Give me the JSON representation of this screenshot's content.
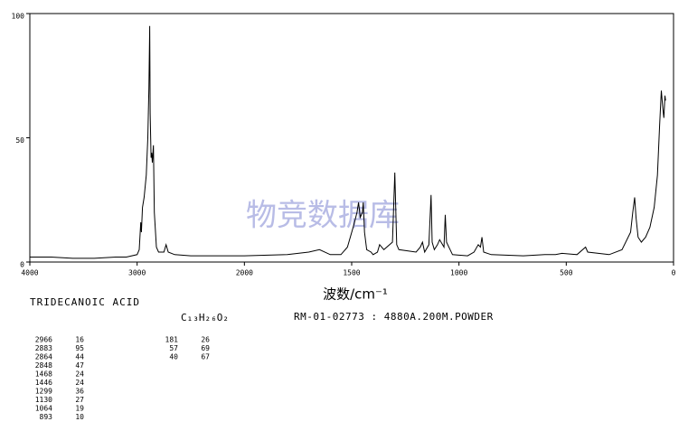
{
  "chart_data": {
    "type": "line",
    "x_label": "波数/cm⁻¹",
    "xlim": [
      4000,
      0
    ],
    "ylim": [
      0,
      100
    ],
    "xticks": [
      4000,
      3000,
      2000,
      1500,
      1000,
      500,
      0
    ],
    "yticks": [
      0,
      50,
      100
    ],
    "xscale": "equal-spacing-between-ticks",
    "series": [
      {
        "color": "#000000",
        "x": [
          4000,
          3800,
          3600,
          3400,
          3200,
          3100,
          3000,
          2980,
          2966,
          2960,
          2950,
          2935,
          2915,
          2900,
          2890,
          2883,
          2878,
          2870,
          2864,
          2858,
          2848,
          2840,
          2820,
          2800,
          2750,
          2730,
          2710,
          2650,
          2500,
          2200,
          2000,
          1800,
          1700,
          1650,
          1600,
          1550,
          1520,
          1490,
          1475,
          1468,
          1460,
          1450,
          1446,
          1440,
          1430,
          1410,
          1400,
          1380,
          1370,
          1350,
          1310,
          1299,
          1290,
          1280,
          1200,
          1180,
          1170,
          1160,
          1140,
          1130,
          1125,
          1115,
          1100,
          1090,
          1070,
          1064,
          1058,
          1030,
          960,
          930,
          910,
          900,
          893,
          885,
          850,
          700,
          600,
          550,
          520,
          450,
          410,
          400,
          300,
          240,
          200,
          190,
          181,
          175,
          165,
          150,
          130,
          110,
          90,
          75,
          65,
          57,
          50,
          45,
          40,
          37
        ],
        "values": [
          2,
          2,
          1.5,
          1.5,
          2,
          2,
          3,
          5,
          16,
          12,
          22,
          26,
          35,
          50,
          70,
          95,
          60,
          42,
          44,
          40,
          47,
          20,
          6,
          4,
          4,
          7,
          4,
          3,
          2.5,
          2.5,
          2.5,
          3,
          4,
          5,
          3,
          3,
          6,
          15,
          20,
          24,
          18,
          20,
          24,
          12,
          5,
          4,
          3,
          4,
          7,
          5,
          8,
          36,
          7,
          5,
          4,
          6,
          8,
          4,
          7,
          27,
          8,
          5,
          7,
          9,
          6,
          19,
          8,
          3,
          2.5,
          4,
          7,
          6,
          10,
          4,
          3,
          2.5,
          3,
          3,
          3.5,
          3,
          6,
          4,
          3,
          5,
          12,
          20,
          26,
          18,
          10,
          8,
          10,
          14,
          22,
          35,
          55,
          69,
          62,
          58,
          67,
          65
        ]
      }
    ]
  },
  "watermark": "物竞数据库",
  "compound": "TRIDECANOIC ACID",
  "formula": "C₁₃H₂₆O₂",
  "sample_info": "RM-01-02773 : 4880A.200M.POWDER",
  "peak_table": [
    [
      [
        "2966",
        "16"
      ],
      [
        "2883",
        "95"
      ],
      [
        "2864",
        "44"
      ],
      [
        "2848",
        "47"
      ],
      [
        "1468",
        "24"
      ],
      [
        "1446",
        "24"
      ],
      [
        "1299",
        "36"
      ],
      [
        "1130",
        "27"
      ],
      [
        "1064",
        "19"
      ],
      [
        "893",
        "10"
      ]
    ],
    [
      [
        "181",
        "26"
      ],
      [
        "57",
        "69"
      ],
      [
        "40",
        "67"
      ]
    ]
  ]
}
